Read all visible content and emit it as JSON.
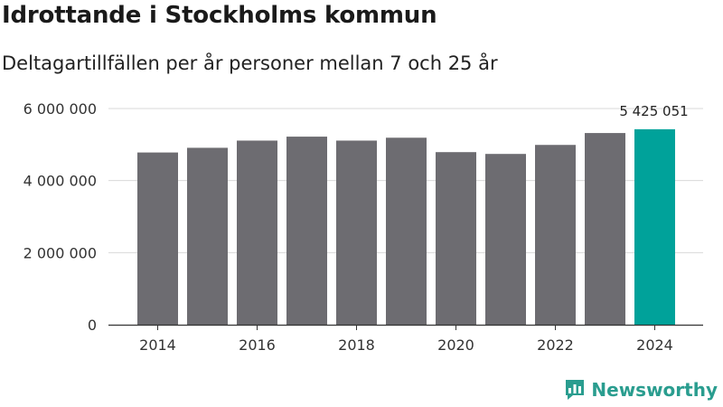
{
  "title": "Idrottande i Stockholms kommun",
  "subtitle": "Deltagartillfällen per år personer mellan 7 och 25 år",
  "brand": "Newsworthy",
  "colors": {
    "bar": "#6d6c71",
    "highlight": "#00a29a",
    "grid": "#d9d9d9",
    "axis": "#333333",
    "brand": "#2a9d8f"
  },
  "chart_data": {
    "type": "bar",
    "title": "Idrottande i Stockholms kommun",
    "subtitle": "Deltagartillfällen per år personer mellan 7 och 25 år",
    "categories": [
      "2014",
      "2015",
      "2016",
      "2017",
      "2018",
      "2019",
      "2020",
      "2021",
      "2022",
      "2023",
      "2024"
    ],
    "values": [
      4780000,
      4910000,
      5110000,
      5220000,
      5110000,
      5190000,
      4790000,
      4740000,
      4990000,
      5320000,
      5425051
    ],
    "ylim": [
      0,
      6000000
    ],
    "yticks": [
      0,
      2000000,
      4000000,
      6000000
    ],
    "ytick_labels": [
      "0",
      "2 000 000",
      "4 000 000",
      "6 000 000"
    ],
    "xtick_labels": [
      "2014",
      "2016",
      "2018",
      "2020",
      "2022",
      "2024"
    ],
    "highlight_index": 10,
    "highlight_label": "5 425 051",
    "xlabel": "",
    "ylabel": "",
    "grid": true
  }
}
